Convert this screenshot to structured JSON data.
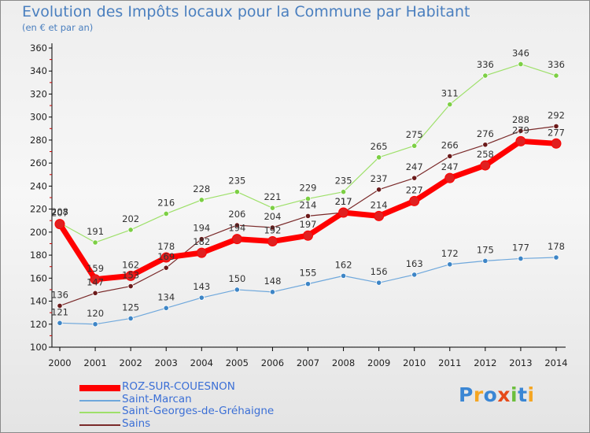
{
  "title": "Evolution des Impôts locaux pour la Commune par Habitant",
  "subtitle": "(en € et par an)",
  "logo": {
    "text": "Proxiti",
    "colors": [
      "#3a86d4",
      "#f5a623",
      "#3a86d4",
      "#e64a19",
      "#6cbf3d",
      "#3a86d4",
      "#f5a623"
    ]
  },
  "chart_data": {
    "type": "line",
    "title": "Evolution des Impôts locaux pour la Commune par Habitant",
    "subtitle": "(en € et par an)",
    "x": [
      "2000",
      "2001",
      "2002",
      "2003",
      "2004",
      "2005",
      "2006",
      "2007",
      "2008",
      "2009",
      "2010",
      "2011",
      "2012",
      "2013",
      "2014"
    ],
    "yticks": [
      "100",
      "120",
      "140",
      "160",
      "180",
      "200",
      "220",
      "240",
      "260",
      "280",
      "300",
      "320",
      "340",
      "360"
    ],
    "ylim": [
      100,
      360
    ],
    "grid": false,
    "legend": "bottom-left",
    "series": [
      {
        "name": "ROZ-SUR-COUESNON",
        "color": "#ff0000",
        "marker": "#e02020",
        "width": 7,
        "values": [
          207,
          159,
          162,
          178,
          182,
          194,
          192,
          197,
          217,
          214,
          227,
          247,
          258,
          279,
          277
        ]
      },
      {
        "name": "Saint-Marcan",
        "color": "#6fa8dc",
        "marker": "#3d85c6",
        "width": 1.2,
        "values": [
          121,
          120,
          125,
          134,
          143,
          150,
          148,
          155,
          162,
          156,
          163,
          172,
          175,
          177,
          178
        ]
      },
      {
        "name": "Saint-Georges-de-Gréhaigne",
        "color": "#9ee06a",
        "marker": "#7ccf44",
        "width": 1.2,
        "values": [
          208,
          191,
          202,
          216,
          228,
          235,
          221,
          229,
          235,
          265,
          275,
          311,
          336,
          346,
          336
        ]
      },
      {
        "name": "Sains",
        "color": "#7a2a2a",
        "marker": "#6b1a1a",
        "width": 1.2,
        "values": [
          136,
          147,
          153,
          169,
          194,
          206,
          204,
          214,
          217,
          237,
          247,
          266,
          276,
          288,
          292
        ]
      }
    ]
  }
}
